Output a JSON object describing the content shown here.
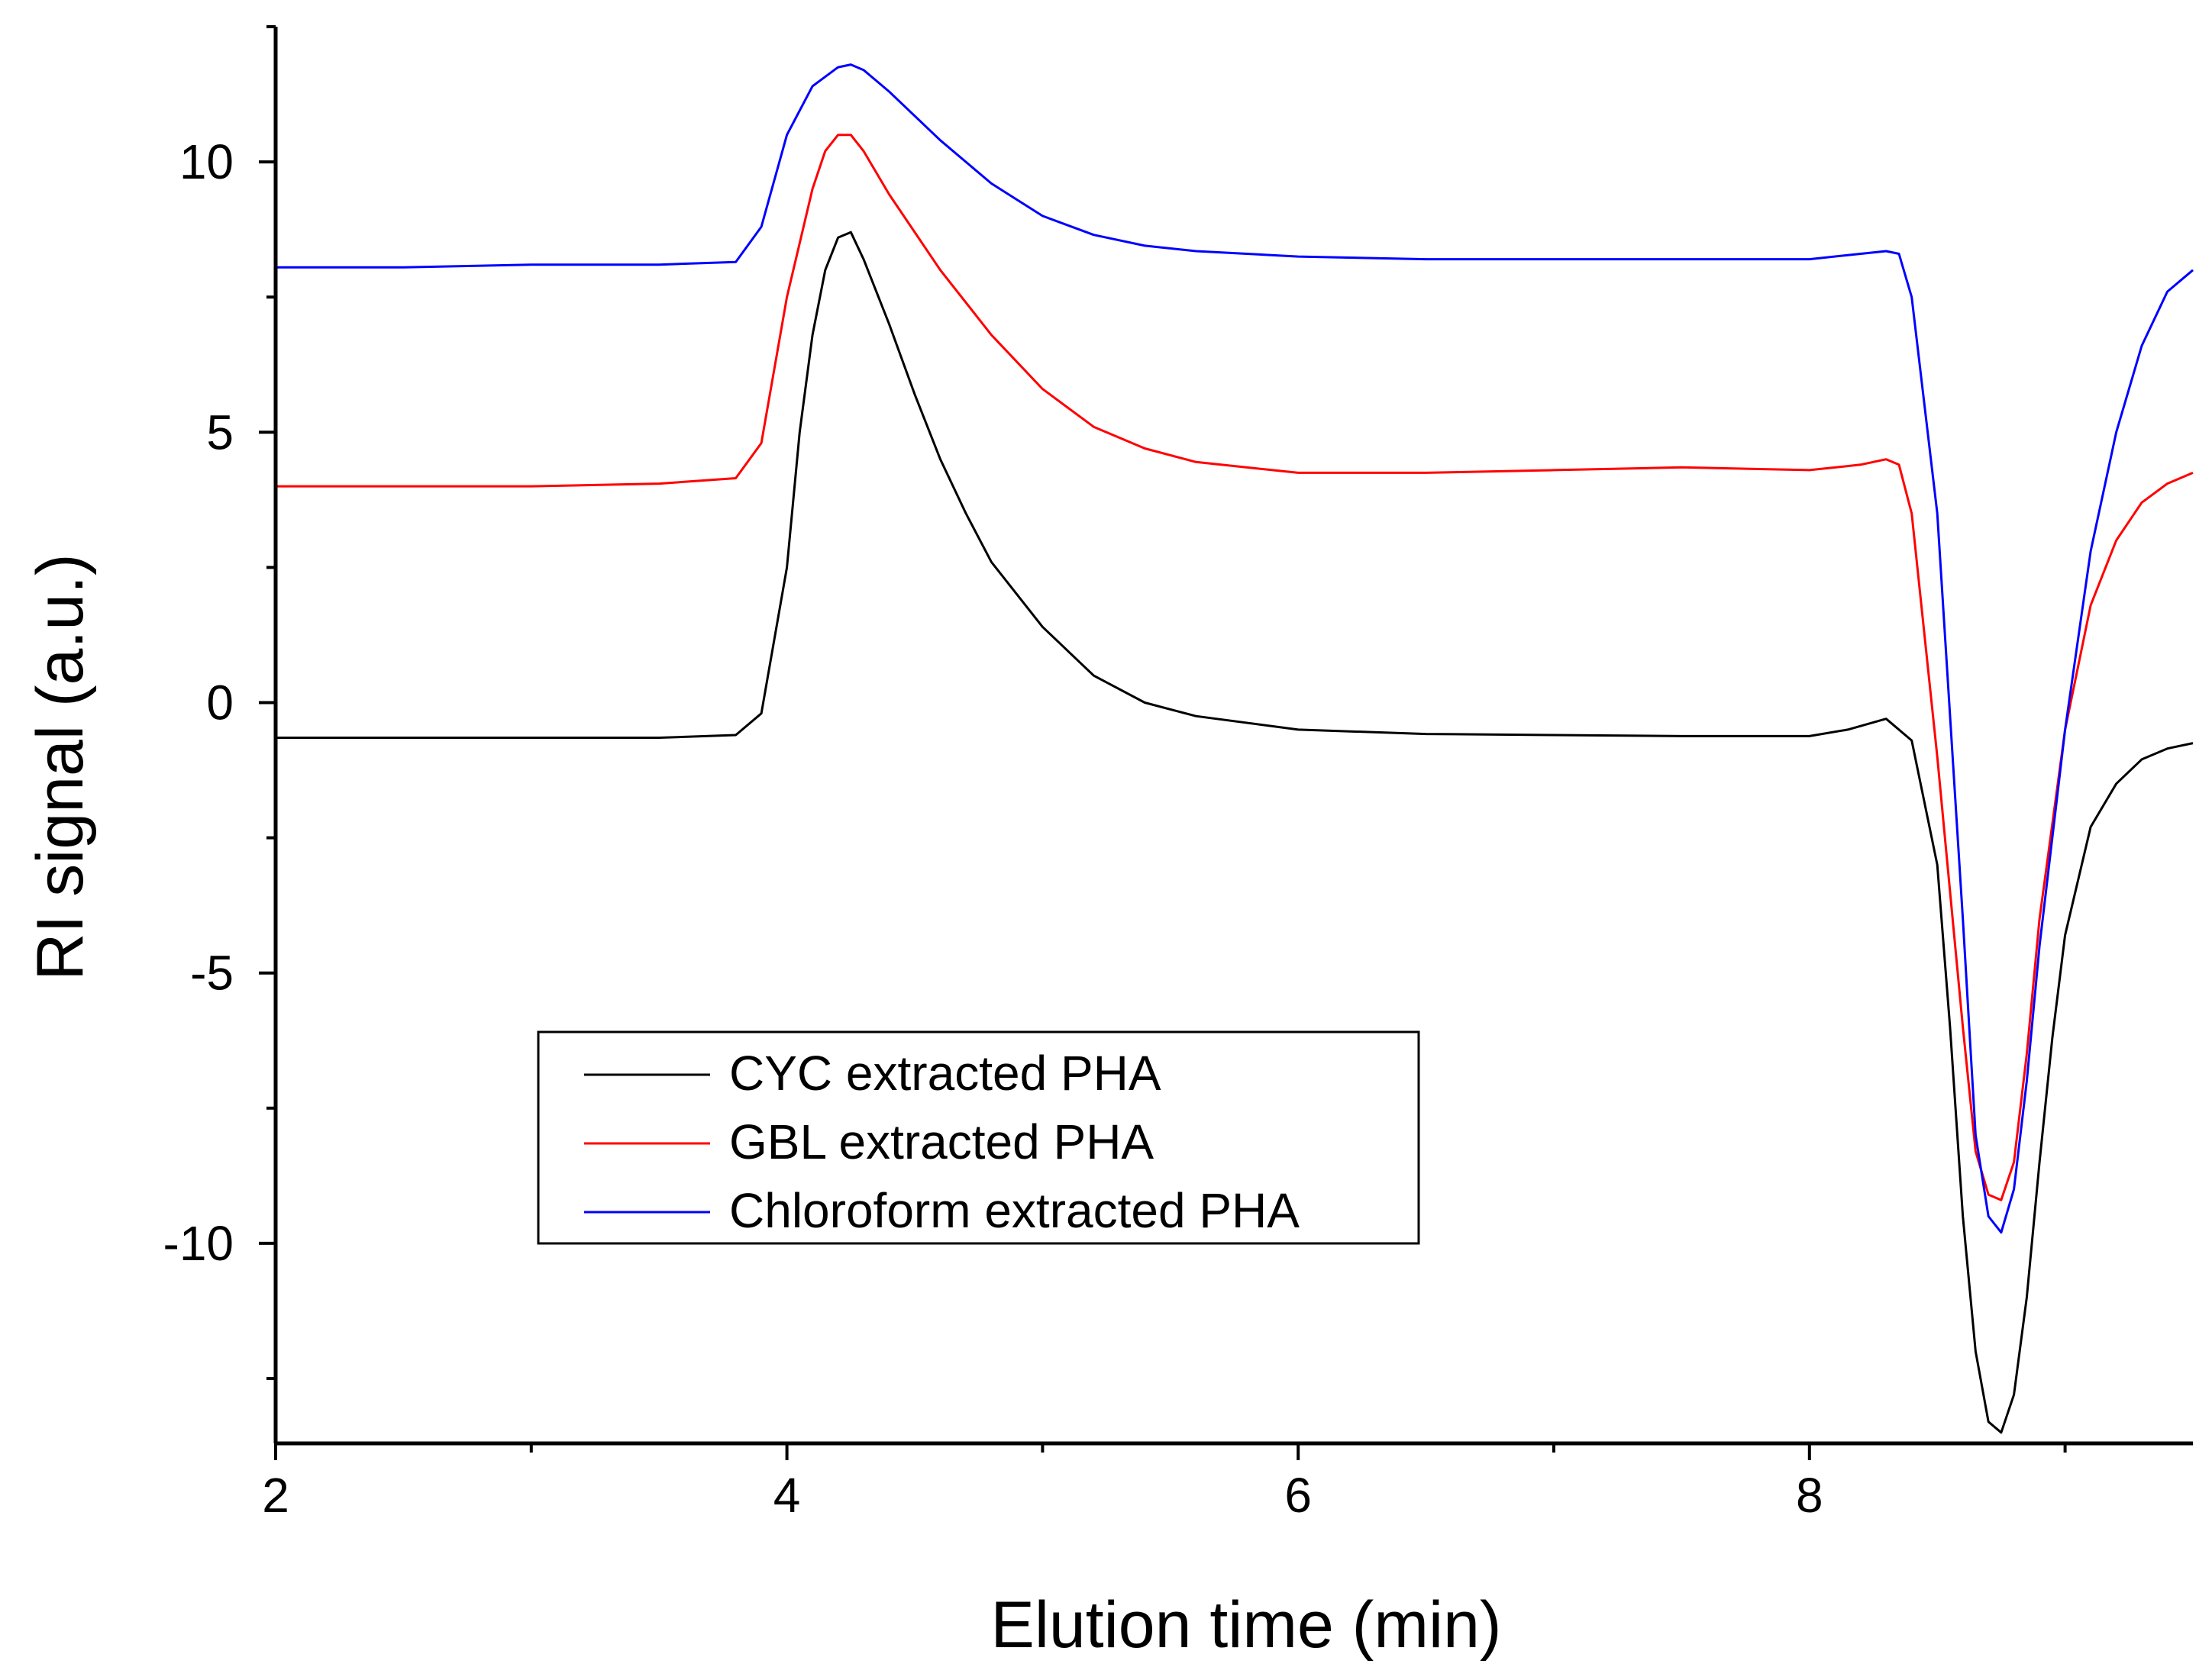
{
  "chart_data": {
    "type": "line",
    "title": "",
    "xlabel": "Elution time (min)",
    "ylabel": "RI signal (a.u.)",
    "xlim": [
      2,
      9.5
    ],
    "ylim": [
      -13.7,
      12.5
    ],
    "x_ticks": [
      2,
      4,
      6,
      8
    ],
    "x_tick_labels": [
      "2",
      "4",
      "6",
      "8"
    ],
    "x_minor_ticks": [
      3,
      5,
      7,
      9
    ],
    "y_ticks": [
      -10,
      -5,
      0,
      5,
      10
    ],
    "y_tick_labels": [
      "-10",
      "-5",
      "0",
      "5",
      "10"
    ],
    "grid": false,
    "legend_position": "lower-left",
    "series": [
      {
        "name": "CYC extracted PHA",
        "color": "#000000",
        "x": [
          2.0,
          2.5,
          3.0,
          3.5,
          3.8,
          3.9,
          4.0,
          4.05,
          4.1,
          4.15,
          4.2,
          4.25,
          4.3,
          4.4,
          4.5,
          4.6,
          4.7,
          4.8,
          5.0,
          5.2,
          5.4,
          5.6,
          6.0,
          6.5,
          7.0,
          7.5,
          8.0,
          8.15,
          8.3,
          8.4,
          8.5,
          8.55,
          8.6,
          8.65,
          8.7,
          8.75,
          8.8,
          8.85,
          8.9,
          8.95,
          9.0,
          9.1,
          9.2,
          9.3,
          9.4,
          9.5
        ],
        "y": [
          -0.65,
          -0.65,
          -0.65,
          -0.65,
          -0.6,
          -0.2,
          2.5,
          5.0,
          6.8,
          8.0,
          8.6,
          8.7,
          8.2,
          7.0,
          5.7,
          4.5,
          3.5,
          2.6,
          1.4,
          0.5,
          0.0,
          -0.25,
          -0.5,
          -0.58,
          -0.6,
          -0.62,
          -0.62,
          -0.5,
          -0.3,
          -0.7,
          -3.0,
          -6.0,
          -9.5,
          -12.0,
          -13.3,
          -13.5,
          -12.8,
          -11.0,
          -8.5,
          -6.2,
          -4.3,
          -2.3,
          -1.5,
          -1.05,
          -0.85,
          -0.75
        ]
      },
      {
        "name": "GBL extracted PHA",
        "color": "#ff0000",
        "x": [
          2.0,
          2.5,
          3.0,
          3.5,
          3.8,
          3.9,
          4.0,
          4.1,
          4.15,
          4.2,
          4.25,
          4.3,
          4.4,
          4.6,
          4.8,
          5.0,
          5.2,
          5.4,
          5.6,
          6.0,
          6.5,
          7.0,
          7.5,
          8.0,
          8.2,
          8.3,
          8.35,
          8.4,
          8.5,
          8.6,
          8.65,
          8.7,
          8.75,
          8.8,
          8.85,
          8.9,
          9.0,
          9.1,
          9.2,
          9.3,
          9.4,
          9.5
        ],
        "y": [
          4.0,
          4.0,
          4.0,
          4.05,
          4.15,
          4.8,
          7.5,
          9.5,
          10.2,
          10.5,
          10.5,
          10.2,
          9.4,
          8.0,
          6.8,
          5.8,
          5.1,
          4.7,
          4.45,
          4.25,
          4.25,
          4.3,
          4.35,
          4.3,
          4.4,
          4.5,
          4.4,
          3.5,
          -1.0,
          -6.0,
          -8.3,
          -9.1,
          -9.2,
          -8.5,
          -6.5,
          -4.0,
          -0.5,
          1.8,
          3.0,
          3.7,
          4.05,
          4.25
        ]
      },
      {
        "name": "Chloroform extracted PHA",
        "color": "#0000ff",
        "x": [
          2.0,
          2.5,
          3.0,
          3.5,
          3.8,
          3.9,
          4.0,
          4.1,
          4.2,
          4.25,
          4.3,
          4.4,
          4.6,
          4.8,
          5.0,
          5.2,
          5.4,
          5.6,
          6.0,
          6.5,
          7.0,
          7.5,
          8.0,
          8.2,
          8.3,
          8.35,
          8.4,
          8.5,
          8.6,
          8.65,
          8.7,
          8.75,
          8.8,
          8.85,
          8.9,
          9.0,
          9.1,
          9.2,
          9.3,
          9.4,
          9.5
        ],
        "y": [
          8.05,
          8.05,
          8.1,
          8.1,
          8.15,
          8.8,
          10.5,
          11.4,
          11.75,
          11.8,
          11.7,
          11.3,
          10.4,
          9.6,
          9.0,
          8.65,
          8.45,
          8.35,
          8.25,
          8.2,
          8.2,
          8.2,
          8.2,
          8.3,
          8.35,
          8.3,
          7.5,
          3.5,
          -4.0,
          -8.0,
          -9.5,
          -9.8,
          -9.0,
          -7.0,
          -4.5,
          -0.5,
          2.8,
          5.0,
          6.6,
          7.6,
          8.0
        ]
      }
    ]
  }
}
